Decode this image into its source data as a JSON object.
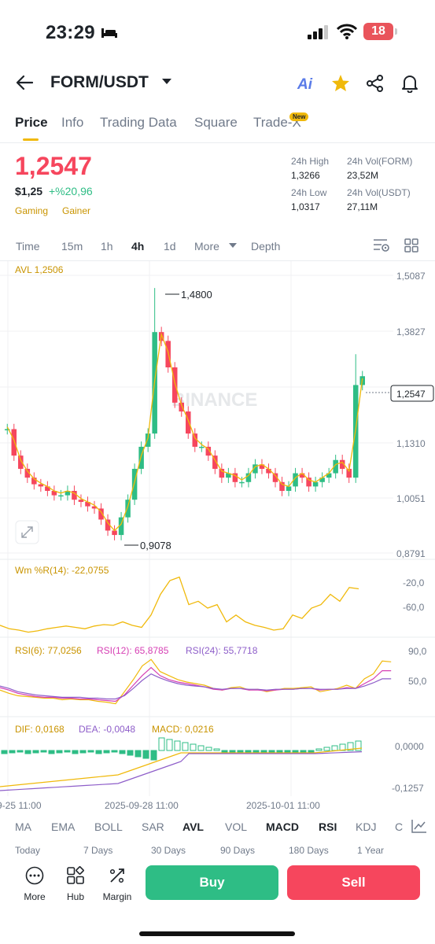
{
  "status_bar": {
    "time": "23:29",
    "battery": "18"
  },
  "header": {
    "pair": "FORM/USDT",
    "back_icon": "back-arrow-icon",
    "icons": [
      "ai-icon",
      "star-icon",
      "share-icon",
      "bell-icon"
    ],
    "star_color": "#f0b90b"
  },
  "tabs": [
    {
      "label": "Price",
      "active": true
    },
    {
      "label": "Info"
    },
    {
      "label": "Trading Data"
    },
    {
      "label": "Square"
    },
    {
      "label": "Trade-X"
    }
  ],
  "new_badge": "New",
  "ticker": {
    "price": "1,2547",
    "usd": "$1,25",
    "change": "+%20,96",
    "tags": [
      "Gaming",
      "Gainer"
    ],
    "stats": {
      "high_label": "24h High",
      "high_value": "1,3266",
      "vol_form_label": "24h Vol(FORM)",
      "vol_form_value": "23,52M",
      "low_label": "24h Low",
      "low_value": "1,0317",
      "vol_usdt_label": "24h Vol(USDT)",
      "vol_usdt_value": "27,11M"
    }
  },
  "timeframes": [
    {
      "label": "Time"
    },
    {
      "label": "15m"
    },
    {
      "label": "1h"
    },
    {
      "label": "4h",
      "active": true
    },
    {
      "label": "1d"
    },
    {
      "label": "More"
    },
    {
      "label": "Depth"
    }
  ],
  "chart": {
    "avl_label": "AVL 1,2506",
    "watermark": "BINANCE",
    "price_axis": [
      "1,5087",
      "1,3827",
      "1,2547",
      "1,1310",
      "1,0051",
      "0,8791"
    ],
    "high_marker": "1,4800",
    "low_marker": "0,9078",
    "wr_label": "Wm %R(14): -22,0755",
    "wr_axis": [
      "-20,0",
      "-60,0"
    ],
    "rsi6_label": "RSI(6): 77,0256",
    "rsi12_label": "RSI(12): 65,8785",
    "rsi24_label": "RSI(24): 55,7718",
    "rsi_axis": [
      "90,0",
      "50,0"
    ],
    "dif_label": "DIF: 0,0168",
    "dea_label": "DEA: -0,0048",
    "macd_label": "MACD: 0,0216",
    "macd_axis": [
      "0,0000",
      "-0,1257"
    ],
    "dates": [
      "9-25 11:00",
      "2025-09-28 11:00",
      "2025-10-01 11:00"
    ],
    "colors": {
      "up": "#2ebd85",
      "down": "#f6465d",
      "avl": "#f0b90b",
      "rsi12": "#d63fb4",
      "rsi24": "#8e5ec9"
    }
  },
  "indicators": [
    {
      "label": "MA"
    },
    {
      "label": "EMA"
    },
    {
      "label": "BOLL"
    },
    {
      "label": "SAR"
    },
    {
      "label": "AVL",
      "bold": true
    },
    {
      "label": "VOL"
    },
    {
      "label": "MACD",
      "bold": true
    },
    {
      "label": "RSI",
      "bold": true
    },
    {
      "label": "KDJ"
    },
    {
      "label": "C"
    }
  ],
  "periods": [
    "Today",
    "7 Days",
    "30 Days",
    "90 Days",
    "180 Days",
    "1 Year"
  ],
  "bottom_actions": [
    {
      "label": "More",
      "icon": "more-icon"
    },
    {
      "label": "Hub",
      "icon": "hub-icon"
    },
    {
      "label": "Margin",
      "icon": "margin-icon"
    }
  ],
  "buttons": {
    "buy": "Buy",
    "sell": "Sell",
    "buy_color": "#2ebd85",
    "sell_color": "#f6465d"
  }
}
